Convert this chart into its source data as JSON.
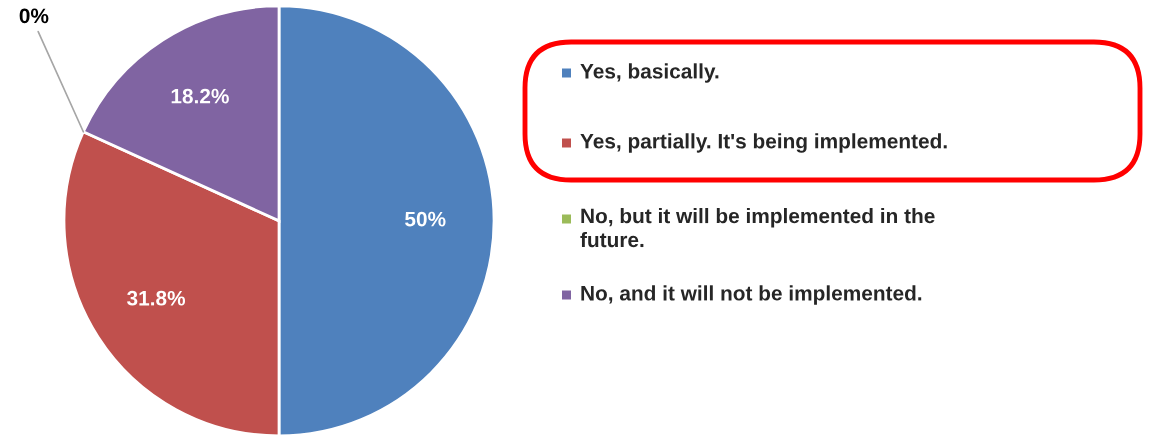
{
  "chart_data": {
    "type": "pie",
    "categories": [
      "Yes, basically.",
      "Yes, partially. It's being implemented.",
      "No, but it will be implemented in the future.",
      "No, and it will not be implemented."
    ],
    "values": [
      50,
      31.8,
      0,
      18.2
    ],
    "colors": [
      "#4f81bd",
      "#c0504d",
      "#9bbb59",
      "#8064a2"
    ],
    "value_labels": [
      "50%",
      "31.8%",
      "0%",
      "18.2%"
    ],
    "legend": "right"
  }
}
